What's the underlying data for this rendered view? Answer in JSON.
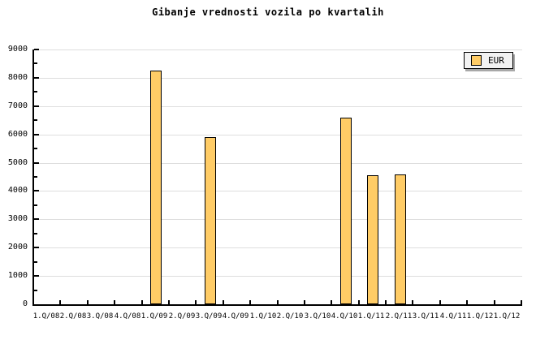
{
  "title": "Gibanje vrednosti vozila po kvartalih",
  "legend": {
    "label": "EUR",
    "swatch_color": "#FFCC66"
  },
  "colors": {
    "background": "#ffffff",
    "bar_fill": "#FFCC66",
    "bar_border": "#000000",
    "gridline": "#dedede",
    "axis": "#000000",
    "legend_bg": "#f2f2f2",
    "legend_shadow": "#a8a8a8"
  },
  "chart_data": {
    "type": "bar",
    "title": "Gibanje vrednosti vozila po kvartalih",
    "categories": [
      "1.Q/08",
      "2.Q/08",
      "3.Q/08",
      "4.Q/08",
      "1.Q/09",
      "2.Q/09",
      "3.Q/09",
      "4.Q/09",
      "1.Q/10",
      "2.Q/10",
      "3.Q/10",
      "4.Q/10",
      "1.Q/11",
      "2.Q/11",
      "3.Q/11",
      "4.Q/11",
      "1.Q/12",
      "1.Q/12"
    ],
    "series": [
      {
        "name": "EUR",
        "values": [
          0,
          0,
          0,
          0,
          8250,
          0,
          5900,
          0,
          0,
          0,
          0,
          6600,
          4550,
          4600,
          0,
          0,
          0,
          0
        ]
      }
    ],
    "xlabel": "",
    "ylabel": "",
    "ylim": [
      0,
      9000
    ],
    "y_major_step": 1000,
    "y_minor_step": 500,
    "y_tick_labels": [
      "0",
      "1000",
      "2000",
      "3000",
      "4000",
      "5000",
      "6000",
      "7000",
      "8000",
      "9000"
    ],
    "grid": true,
    "legend_position": "top-right"
  }
}
